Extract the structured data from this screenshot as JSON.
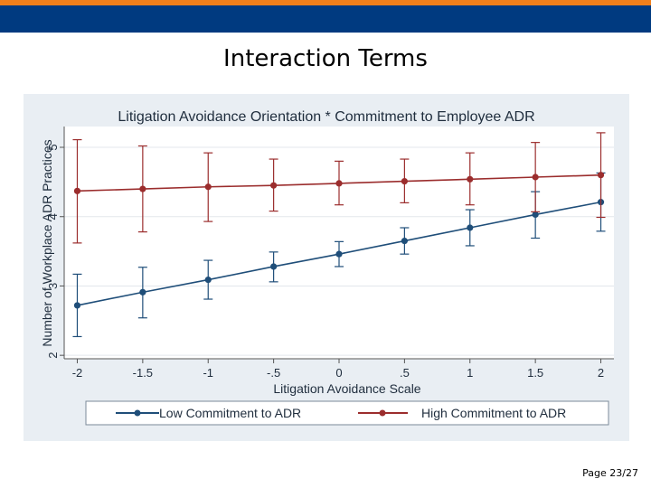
{
  "slide": {
    "title": "Interaction Terms",
    "page_label": "Page 23/27",
    "header_colors": {
      "stripe": "#f07f1b",
      "band": "#003a80"
    }
  },
  "chart_data": {
    "type": "line",
    "title": "Litigation Avoidance Orientation * Commitment to Employee ADR",
    "xlabel": "Litigation Avoidance Scale",
    "ylabel": "Number of Workplace ADR Practices",
    "x": [
      -2,
      -1.5,
      -1,
      -0.5,
      0,
      0.5,
      1,
      1.5,
      2
    ],
    "x_tick_labels": [
      "-2",
      "-1.5",
      "-1",
      "-.5",
      "0",
      ".5",
      "1",
      "1.5",
      "2"
    ],
    "y_ticks": [
      2,
      3,
      4,
      5
    ],
    "xlim": [
      -2.1,
      2.1
    ],
    "ylim": [
      1.95,
      5.3
    ],
    "grid": true,
    "legend_position": "bottom",
    "series": [
      {
        "name": "Low Commitment to ADR",
        "color": "#1f4e79",
        "values": [
          2.72,
          2.91,
          3.09,
          3.28,
          3.46,
          3.65,
          3.84,
          4.03,
          4.21
        ],
        "ci_low": [
          2.27,
          2.54,
          2.81,
          3.06,
          3.28,
          3.46,
          3.58,
          3.69,
          3.79
        ],
        "ci_high": [
          3.17,
          3.27,
          3.37,
          3.49,
          3.64,
          3.84,
          4.1,
          4.36,
          4.63
        ]
      },
      {
        "name": "High Commitment to ADR",
        "color": "#9b2d2d",
        "values": [
          4.37,
          4.4,
          4.43,
          4.45,
          4.48,
          4.51,
          4.54,
          4.57,
          4.6
        ],
        "ci_low": [
          3.62,
          3.78,
          3.93,
          4.08,
          4.17,
          4.2,
          4.17,
          4.07,
          3.99
        ],
        "ci_high": [
          5.11,
          5.02,
          4.92,
          4.83,
          4.8,
          4.83,
          4.92,
          5.07,
          5.21
        ]
      }
    ]
  }
}
